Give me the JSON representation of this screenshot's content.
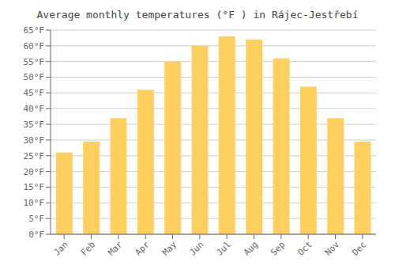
{
  "chart_data": {
    "type": "bar",
    "title": "Average monthly temperatures (°F ) in Rájec-Jestřebí",
    "categories": [
      "Jan",
      "Feb",
      "Mar",
      "Apr",
      "May",
      "Jun",
      "Jul",
      "Aug",
      "Sep",
      "Oct",
      "Nov",
      "Dec"
    ],
    "values": [
      26,
      29.5,
      37,
      46,
      55,
      60,
      63,
      62,
      56,
      47,
      37,
      29.5
    ],
    "color": "#FFD060",
    "ylim": [
      0,
      65
    ],
    "yticks": [
      {
        "value": 0,
        "label": "0°F"
      },
      {
        "value": 5,
        "label": "5°F"
      },
      {
        "value": 10,
        "label": "10°F"
      },
      {
        "value": 15,
        "label": "15°F"
      },
      {
        "value": 20,
        "label": "20°F"
      },
      {
        "value": 25,
        "label": "25°F"
      },
      {
        "value": 30,
        "label": "30°F"
      },
      {
        "value": 35,
        "label": "35°F"
      },
      {
        "value": 40,
        "label": "40°F"
      },
      {
        "value": 45,
        "label": "45°F"
      },
      {
        "value": 50,
        "label": "50°F"
      },
      {
        "value": 55,
        "label": "55°F"
      },
      {
        "value": 60,
        "label": "60°F"
      },
      {
        "value": 65,
        "label": "65°F"
      }
    ],
    "grid": true
  }
}
